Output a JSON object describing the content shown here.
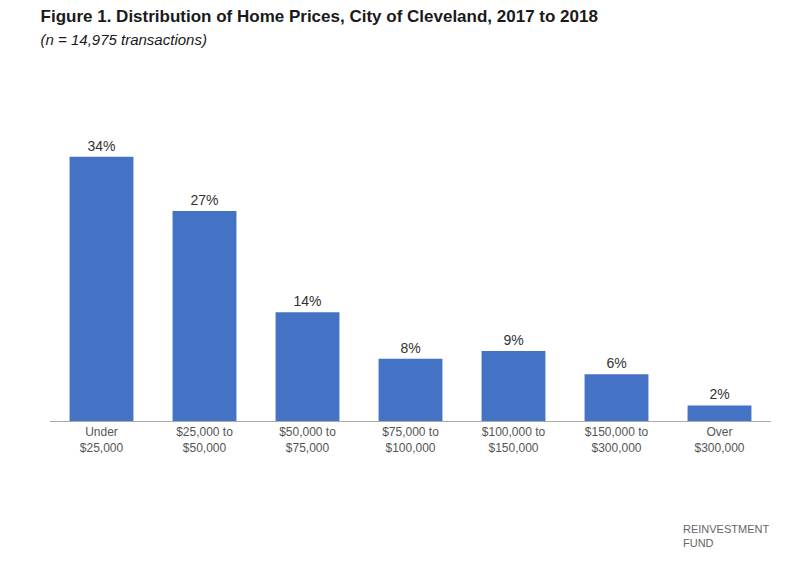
{
  "chart_data": {
    "type": "bar",
    "title": "Figure 1. Distribution of Home Prices, City of Cleveland, 2017 to 2018",
    "subtitle": "(n = 14,975 transactions)",
    "categories": [
      "Under\n$25,000",
      "$25,000 to\n$50,000",
      "$50,000 to\n$75,000",
      "$75,000 to\n$100,000",
      "$100,000 to\n$150,000",
      "$150,000 to\n$300,000",
      "Over\n$300,000"
    ],
    "values": [
      34,
      27,
      14,
      8,
      9,
      6,
      2
    ],
    "value_labels": [
      "34%",
      "27%",
      "14%",
      "8%",
      "9%",
      "6%",
      "2%"
    ],
    "data_labels": true,
    "color": "#4472C4",
    "ylim": [
      0,
      40
    ],
    "grid": false,
    "tick_labels": "x",
    "annotations": [
      "REINVESTMENT\nFUND"
    ]
  }
}
